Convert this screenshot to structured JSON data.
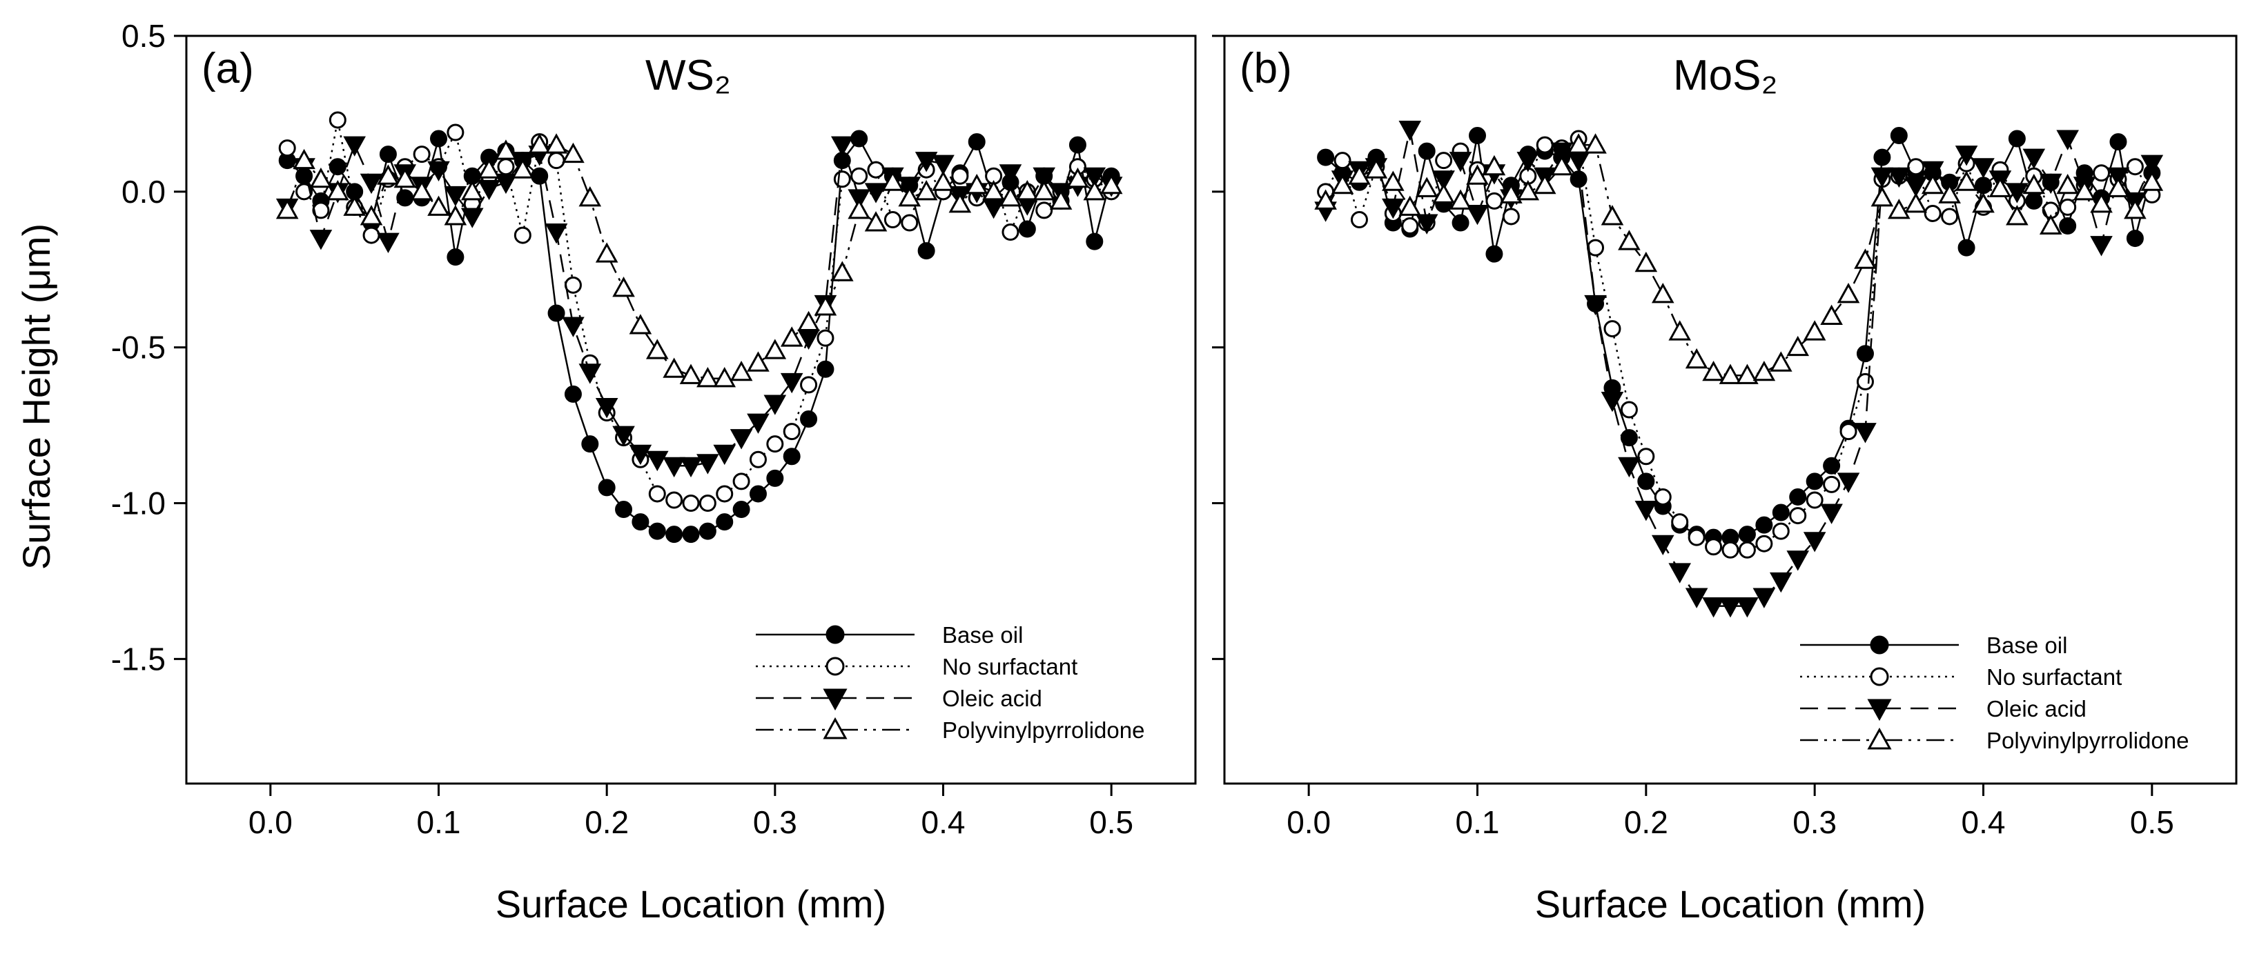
{
  "chart_data": [
    {
      "type": "line",
      "panel_label": "(a)",
      "title": "WS₂",
      "xlabel": "Surface Location (mm)",
      "ylabel": "Surface Height (μm)",
      "xlim": [
        -0.05,
        0.55
      ],
      "ylim": [
        -1.9,
        0.5
      ],
      "xticks": [
        "0.0",
        "0.1",
        "0.2",
        "0.3",
        "0.4",
        "0.5"
      ],
      "yticks": [
        "0.5",
        "0.0",
        "-0.5",
        "-1.0",
        "-1.5"
      ],
      "legend_position": "bottom-right",
      "series": [
        {
          "name": "Base oil",
          "marker": "filled-circle",
          "dash": "solid",
          "x": [
            0.01,
            0.02,
            0.03,
            0.04,
            0.05,
            0.06,
            0.07,
            0.08,
            0.09,
            0.1,
            0.11,
            0.12,
            0.13,
            0.14,
            0.15,
            0.16,
            0.17,
            0.18,
            0.19,
            0.2,
            0.21,
            0.22,
            0.23,
            0.24,
            0.25,
            0.26,
            0.27,
            0.28,
            0.29,
            0.3,
            0.31,
            0.32,
            0.33,
            0.34,
            0.35,
            0.36,
            0.37,
            0.38,
            0.39,
            0.4,
            0.41,
            0.42,
            0.43,
            0.44,
            0.45,
            0.46,
            0.47,
            0.48,
            0.49,
            0.5
          ],
          "values": [
            0.1,
            0.05,
            -0.03,
            0.08,
            0.0,
            -0.1,
            0.12,
            -0.02,
            -0.02,
            0.17,
            -0.21,
            0.05,
            0.11,
            0.13,
            0.1,
            0.05,
            -0.39,
            -0.65,
            -0.81,
            -0.95,
            -1.02,
            -1.06,
            -1.09,
            -1.1,
            -1.1,
            -1.09,
            -1.06,
            -1.02,
            -0.97,
            -0.92,
            -0.85,
            -0.73,
            -0.57,
            0.1,
            0.17,
            0.07,
            0.05,
            0.02,
            -0.19,
            0.0,
            0.06,
            0.16,
            -0.02,
            0.03,
            -0.12,
            0.05,
            -0.03,
            0.15,
            -0.16,
            0.05
          ]
        },
        {
          "name": "No surfactant",
          "marker": "open-circle",
          "dash": "dotted",
          "x": [
            0.01,
            0.02,
            0.03,
            0.04,
            0.05,
            0.06,
            0.07,
            0.08,
            0.09,
            0.1,
            0.11,
            0.12,
            0.13,
            0.14,
            0.15,
            0.16,
            0.17,
            0.18,
            0.19,
            0.2,
            0.21,
            0.22,
            0.23,
            0.24,
            0.25,
            0.26,
            0.27,
            0.28,
            0.29,
            0.3,
            0.31,
            0.32,
            0.33,
            0.34,
            0.35,
            0.36,
            0.37,
            0.38,
            0.39,
            0.4,
            0.41,
            0.42,
            0.43,
            0.44,
            0.45,
            0.46,
            0.47,
            0.48,
            0.49,
            0.5
          ],
          "values": [
            0.14,
            0.0,
            -0.06,
            0.23,
            -0.05,
            -0.14,
            0.04,
            0.08,
            0.12,
            0.08,
            0.19,
            -0.04,
            0.05,
            0.08,
            -0.14,
            0.16,
            0.1,
            -0.3,
            -0.55,
            -0.71,
            -0.79,
            -0.86,
            -0.97,
            -0.99,
            -1.0,
            -1.0,
            -0.97,
            -0.93,
            -0.86,
            -0.81,
            -0.77,
            -0.62,
            -0.47,
            0.04,
            0.05,
            0.07,
            -0.09,
            -0.1,
            0.07,
            0.0,
            0.05,
            -0.02,
            0.05,
            -0.13,
            0.0,
            -0.06,
            0.0,
            0.08,
            0.04,
            0.0
          ]
        },
        {
          "name": "Oleic acid",
          "marker": "filled-triangle-down",
          "dash": "dashed",
          "x": [
            0.01,
            0.02,
            0.03,
            0.04,
            0.05,
            0.06,
            0.07,
            0.08,
            0.09,
            0.1,
            0.11,
            0.12,
            0.13,
            0.14,
            0.15,
            0.16,
            0.17,
            0.18,
            0.19,
            0.2,
            0.21,
            0.22,
            0.23,
            0.24,
            0.25,
            0.26,
            0.27,
            0.28,
            0.29,
            0.3,
            0.31,
            0.32,
            0.33,
            0.34,
            0.35,
            0.36,
            0.37,
            0.38,
            0.39,
            0.4,
            0.41,
            0.42,
            0.43,
            0.44,
            0.45,
            0.46,
            0.47,
            0.48,
            0.49,
            0.5
          ],
          "values": [
            -0.05,
            0.08,
            -0.15,
            0.0,
            0.15,
            0.03,
            -0.16,
            0.06,
            0.02,
            0.07,
            -0.01,
            -0.08,
            0.01,
            0.03,
            0.1,
            0.12,
            -0.13,
            -0.43,
            -0.58,
            -0.69,
            -0.78,
            -0.84,
            -0.86,
            -0.88,
            -0.88,
            -0.87,
            -0.84,
            -0.79,
            -0.74,
            -0.68,
            -0.61,
            -0.47,
            -0.36,
            0.15,
            -0.02,
            0.0,
            0.05,
            0.02,
            0.1,
            0.09,
            -0.01,
            0.0,
            -0.05,
            0.06,
            -0.04,
            0.05,
            0.0,
            0.02,
            0.05,
            0.02
          ]
        },
        {
          "name": "Polyvinylpyrrolidone",
          "marker": "open-triangle-up",
          "dash": "dashdotdot",
          "x": [
            0.01,
            0.02,
            0.03,
            0.04,
            0.05,
            0.06,
            0.07,
            0.08,
            0.09,
            0.1,
            0.11,
            0.12,
            0.13,
            0.14,
            0.15,
            0.16,
            0.17,
            0.18,
            0.19,
            0.2,
            0.21,
            0.22,
            0.23,
            0.24,
            0.25,
            0.26,
            0.27,
            0.28,
            0.29,
            0.3,
            0.31,
            0.32,
            0.33,
            0.34,
            0.35,
            0.36,
            0.37,
            0.38,
            0.39,
            0.4,
            0.41,
            0.42,
            0.43,
            0.44,
            0.45,
            0.46,
            0.47,
            0.48,
            0.49,
            0.5
          ],
          "values": [
            -0.06,
            0.1,
            0.04,
            0.0,
            -0.05,
            -0.08,
            0.05,
            0.04,
            0.0,
            -0.05,
            -0.08,
            0.0,
            0.07,
            0.13,
            0.07,
            0.15,
            0.15,
            0.12,
            -0.02,
            -0.2,
            -0.31,
            -0.43,
            -0.51,
            -0.57,
            -0.59,
            -0.6,
            -0.6,
            -0.58,
            -0.55,
            -0.51,
            -0.47,
            -0.42,
            -0.37,
            -0.26,
            -0.06,
            -0.1,
            0.03,
            -0.02,
            0.0,
            0.03,
            -0.04,
            0.02,
            0.0,
            -0.02,
            0.0,
            0.0,
            -0.03,
            0.04,
            0.0,
            0.02
          ]
        }
      ]
    },
    {
      "type": "line",
      "panel_label": "(b)",
      "title": "MoS₂",
      "xlabel": "Surface Location (mm)",
      "ylabel": "",
      "xlim": [
        -0.05,
        0.55
      ],
      "ylim": [
        -1.9,
        0.5
      ],
      "xticks": [
        "0.0",
        "0.1",
        "0.2",
        "0.3",
        "0.4",
        "0.5"
      ],
      "yticks": [],
      "legend_position": "bottom-right",
      "series": [
        {
          "name": "Base oil",
          "marker": "filled-circle",
          "dash": "solid",
          "x": [
            0.01,
            0.02,
            0.03,
            0.04,
            0.05,
            0.06,
            0.07,
            0.08,
            0.09,
            0.1,
            0.11,
            0.12,
            0.13,
            0.14,
            0.15,
            0.16,
            0.17,
            0.18,
            0.19,
            0.2,
            0.21,
            0.22,
            0.23,
            0.24,
            0.25,
            0.26,
            0.27,
            0.28,
            0.29,
            0.3,
            0.31,
            0.32,
            0.33,
            0.34,
            0.35,
            0.36,
            0.37,
            0.38,
            0.39,
            0.4,
            0.41,
            0.42,
            0.43,
            0.44,
            0.45,
            0.46,
            0.47,
            0.48,
            0.49,
            0.5
          ],
          "values": [
            0.11,
            0.06,
            0.03,
            0.11,
            -0.1,
            -0.12,
            0.13,
            -0.04,
            -0.1,
            0.18,
            -0.2,
            0.02,
            0.12,
            0.13,
            0.11,
            0.04,
            -0.36,
            -0.63,
            -0.79,
            -0.93,
            -1.01,
            -1.07,
            -1.1,
            -1.11,
            -1.11,
            -1.1,
            -1.07,
            -1.03,
            -0.98,
            -0.93,
            -0.88,
            -0.76,
            -0.52,
            0.11,
            0.18,
            0.06,
            0.06,
            0.03,
            -0.18,
            0.02,
            0.06,
            0.17,
            -0.03,
            0.03,
            -0.11,
            0.06,
            -0.02,
            0.16,
            -0.15,
            0.06
          ]
        },
        {
          "name": "No surfactant",
          "marker": "open-circle",
          "dash": "dotted",
          "x": [
            0.01,
            0.02,
            0.03,
            0.04,
            0.05,
            0.06,
            0.07,
            0.08,
            0.09,
            0.1,
            0.11,
            0.12,
            0.13,
            0.14,
            0.15,
            0.16,
            0.17,
            0.18,
            0.19,
            0.2,
            0.21,
            0.22,
            0.23,
            0.24,
            0.25,
            0.26,
            0.27,
            0.28,
            0.29,
            0.3,
            0.31,
            0.32,
            0.33,
            0.34,
            0.35,
            0.36,
            0.37,
            0.38,
            0.39,
            0.4,
            0.41,
            0.42,
            0.43,
            0.44,
            0.45,
            0.46,
            0.47,
            0.48,
            0.49,
            0.5
          ],
          "values": [
            0.0,
            0.1,
            -0.09,
            0.08,
            -0.07,
            -0.11,
            -0.1,
            0.1,
            0.13,
            0.07,
            -0.03,
            -0.08,
            0.05,
            0.15,
            0.14,
            0.17,
            -0.18,
            -0.44,
            -0.7,
            -0.85,
            -0.98,
            -1.06,
            -1.11,
            -1.14,
            -1.15,
            -1.15,
            -1.13,
            -1.09,
            -1.04,
            -0.99,
            -0.94,
            -0.77,
            -0.61,
            0.04,
            0.05,
            0.08,
            -0.07,
            -0.08,
            0.09,
            -0.05,
            0.07,
            -0.03,
            0.05,
            -0.06,
            -0.05,
            0.02,
            0.06,
            0.04,
            0.08,
            -0.01
          ]
        },
        {
          "name": "Oleic acid",
          "marker": "filled-triangle-down",
          "dash": "dashed",
          "x": [
            0.01,
            0.02,
            0.03,
            0.04,
            0.05,
            0.06,
            0.07,
            0.08,
            0.09,
            0.1,
            0.11,
            0.12,
            0.13,
            0.14,
            0.15,
            0.16,
            0.17,
            0.18,
            0.19,
            0.2,
            0.21,
            0.22,
            0.23,
            0.24,
            0.25,
            0.26,
            0.27,
            0.28,
            0.29,
            0.3,
            0.31,
            0.32,
            0.33,
            0.34,
            0.35,
            0.36,
            0.37,
            0.38,
            0.39,
            0.4,
            0.41,
            0.42,
            0.43,
            0.44,
            0.45,
            0.46,
            0.47,
            0.48,
            0.49,
            0.5
          ],
          "values": [
            -0.06,
            0.04,
            0.07,
            0.08,
            -0.05,
            0.2,
            -0.1,
            0.04,
            0.1,
            -0.07,
            0.06,
            -0.02,
            0.1,
            0.05,
            0.13,
            0.1,
            -0.36,
            -0.67,
            -0.88,
            -1.02,
            -1.13,
            -1.22,
            -1.3,
            -1.33,
            -1.33,
            -1.33,
            -1.3,
            -1.25,
            -1.18,
            -1.12,
            -1.03,
            -0.93,
            -0.77,
            0.05,
            0.05,
            0.02,
            0.07,
            0.02,
            0.12,
            0.08,
            0.04,
            0.0,
            0.11,
            0.03,
            0.17,
            0.02,
            -0.17,
            0.05,
            -0.03,
            0.09
          ]
        },
        {
          "name": "Polyvinylpyrrolidone",
          "marker": "open-triangle-up",
          "dash": "dashdotdot",
          "x": [
            0.01,
            0.02,
            0.03,
            0.04,
            0.05,
            0.06,
            0.07,
            0.08,
            0.09,
            0.1,
            0.11,
            0.12,
            0.13,
            0.14,
            0.15,
            0.16,
            0.17,
            0.18,
            0.19,
            0.2,
            0.21,
            0.22,
            0.23,
            0.24,
            0.25,
            0.26,
            0.27,
            0.28,
            0.29,
            0.3,
            0.31,
            0.32,
            0.33,
            0.34,
            0.35,
            0.36,
            0.37,
            0.38,
            0.39,
            0.4,
            0.41,
            0.42,
            0.43,
            0.44,
            0.45,
            0.46,
            0.47,
            0.48,
            0.49,
            0.5
          ],
          "values": [
            -0.03,
            0.02,
            0.05,
            0.07,
            0.03,
            -0.05,
            0.01,
            -0.01,
            -0.03,
            0.05,
            0.08,
            -0.01,
            0.0,
            0.02,
            0.08,
            0.15,
            0.15,
            -0.08,
            -0.16,
            -0.23,
            -0.33,
            -0.45,
            -0.54,
            -0.58,
            -0.59,
            -0.59,
            -0.58,
            -0.55,
            -0.5,
            -0.45,
            -0.4,
            -0.33,
            -0.22,
            -0.02,
            -0.06,
            -0.04,
            0.02,
            -0.01,
            0.03,
            -0.04,
            0.01,
            -0.08,
            0.02,
            -0.11,
            0.02,
            0.0,
            -0.04,
            0.01,
            -0.06,
            0.03
          ]
        }
      ]
    }
  ]
}
